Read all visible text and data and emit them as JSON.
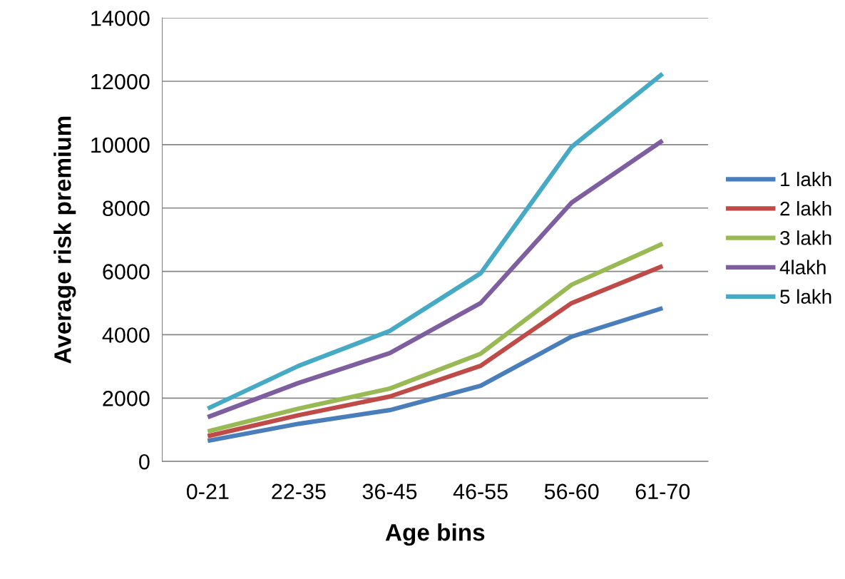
{
  "chart_data": {
    "type": "line",
    "xlabel": "Age bins",
    "ylabel": "Average risk premium",
    "categories": [
      "0-21",
      "22-35",
      "36-45",
      "46-55",
      "56-60",
      "61-70"
    ],
    "series": [
      {
        "name": "1 lakh",
        "color": "#4a7ebb",
        "values": [
          650,
          1190,
          1620,
          2390,
          3940,
          4840
        ]
      },
      {
        "name": "2 lakh",
        "color": "#be4b48",
        "values": [
          800,
          1460,
          2050,
          3020,
          5000,
          6170
        ]
      },
      {
        "name": "3 lakh",
        "color": "#98b954",
        "values": [
          950,
          1670,
          2300,
          3400,
          5580,
          6870
        ]
      },
      {
        "name": "4lakh",
        "color": "#7d5fa0",
        "values": [
          1400,
          2480,
          3420,
          5000,
          8170,
          10130
        ]
      },
      {
        "name": "5 lakh",
        "color": "#46aac5",
        "values": [
          1670,
          3020,
          4120,
          5940,
          9930,
          12240
        ]
      }
    ],
    "ylim": [
      0,
      14000
    ],
    "yticks": [
      0,
      2000,
      4000,
      6000,
      8000,
      10000,
      12000,
      14000
    ],
    "grid": "y",
    "legend": "right",
    "marker": "none",
    "line_style": "solid"
  }
}
